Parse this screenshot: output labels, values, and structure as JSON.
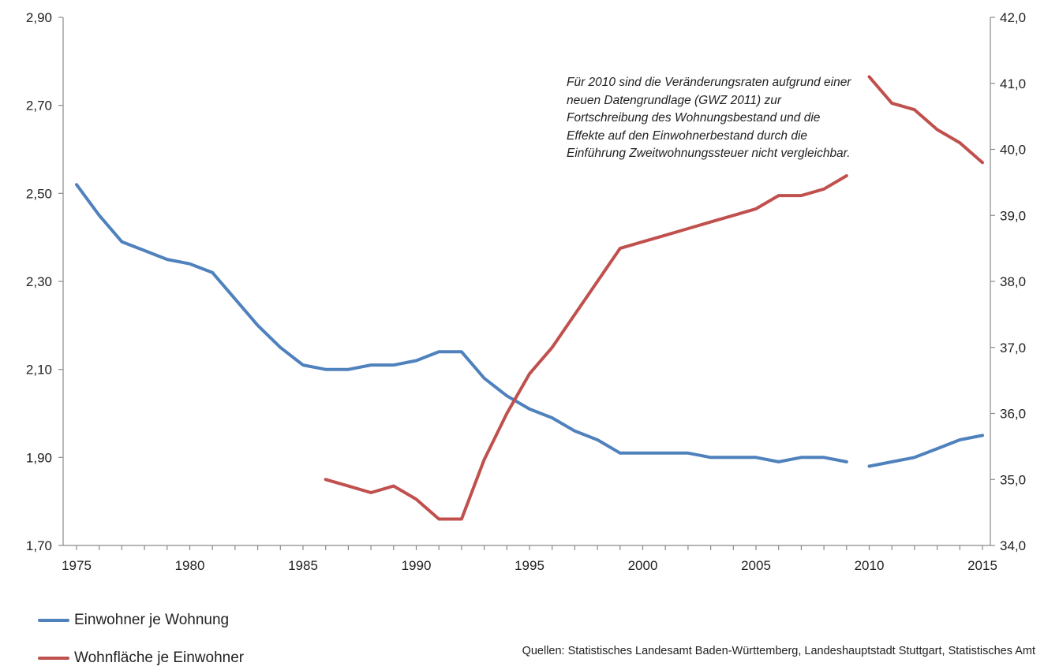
{
  "chart_data": {
    "type": "line",
    "x": [
      1975,
      1976,
      1977,
      1978,
      1979,
      1980,
      1981,
      1982,
      1983,
      1984,
      1985,
      1986,
      1987,
      1988,
      1989,
      1990,
      1991,
      1992,
      1993,
      1994,
      1995,
      1996,
      1997,
      1998,
      1999,
      2000,
      2001,
      2002,
      2003,
      2004,
      2005,
      2006,
      2007,
      2008,
      2009,
      2010,
      2011,
      2012,
      2013,
      2014,
      2015
    ],
    "xticks": [
      "1975",
      "1980",
      "1985",
      "1990",
      "1995",
      "2000",
      "2005",
      "2010",
      "2015"
    ],
    "xlim": [
      1975,
      2015
    ],
    "yleft": {
      "lim": [
        1.7,
        2.9
      ],
      "ticks": [
        "1,70",
        "1,90",
        "2,10",
        "2,30",
        "2,50",
        "2,70",
        "2,90"
      ]
    },
    "yright": {
      "lim": [
        34.0,
        42.0
      ],
      "ticks": [
        "34,0",
        "35,0",
        "36,0",
        "37,0",
        "38,0",
        "39,0",
        "40,0",
        "41,0",
        "42,0"
      ]
    },
    "series": [
      {
        "name": "Einwohner je Wohnung",
        "axis": "left",
        "color": "#4f81bd",
        "values": [
          2.52,
          2.45,
          2.39,
          2.37,
          2.35,
          2.34,
          2.32,
          2.26,
          2.2,
          2.15,
          2.11,
          2.1,
          2.1,
          2.11,
          2.11,
          2.12,
          2.14,
          2.14,
          2.08,
          2.04,
          2.01,
          1.99,
          1.96,
          1.94,
          1.91,
          1.91,
          1.91,
          1.91,
          1.9,
          1.9,
          1.9,
          1.89,
          1.9,
          1.9,
          1.89,
          1.88,
          1.89,
          1.9,
          1.92,
          1.94,
          1.95
        ],
        "break_after": 2009
      },
      {
        "name": "Wohnfläche je Einwohner",
        "axis": "right",
        "color": "#c0504d",
        "values": [
          null,
          null,
          null,
          null,
          null,
          null,
          null,
          null,
          null,
          null,
          null,
          35.0,
          34.9,
          34.8,
          34.9,
          34.7,
          34.4,
          34.4,
          35.3,
          36.0,
          36.6,
          37.0,
          37.5,
          38.0,
          38.5,
          38.6,
          38.7,
          38.8,
          38.9,
          39.0,
          39.1,
          39.3,
          39.3,
          39.4,
          39.6,
          41.1,
          40.7,
          40.6,
          40.3,
          40.1,
          39.8
        ],
        "break_after": 2009
      }
    ],
    "annotation": "Für 2010 sind die Veränderungsraten aufgrund einer neuen Datengrundlage  (GWZ 2011) zur Fortschreibung des Wohnungsbestand  und  die Effekte auf den Einwohnerbestand durch die Einführung Zweitwohnungssteuer nicht vergleichbar.",
    "source": "Quellen: Statistisches Landesamt Baden-Württemberg, Landeshauptstadt Stuttgart, Statistisches Amt",
    "grid": false,
    "legend_position": "bottom-left"
  }
}
